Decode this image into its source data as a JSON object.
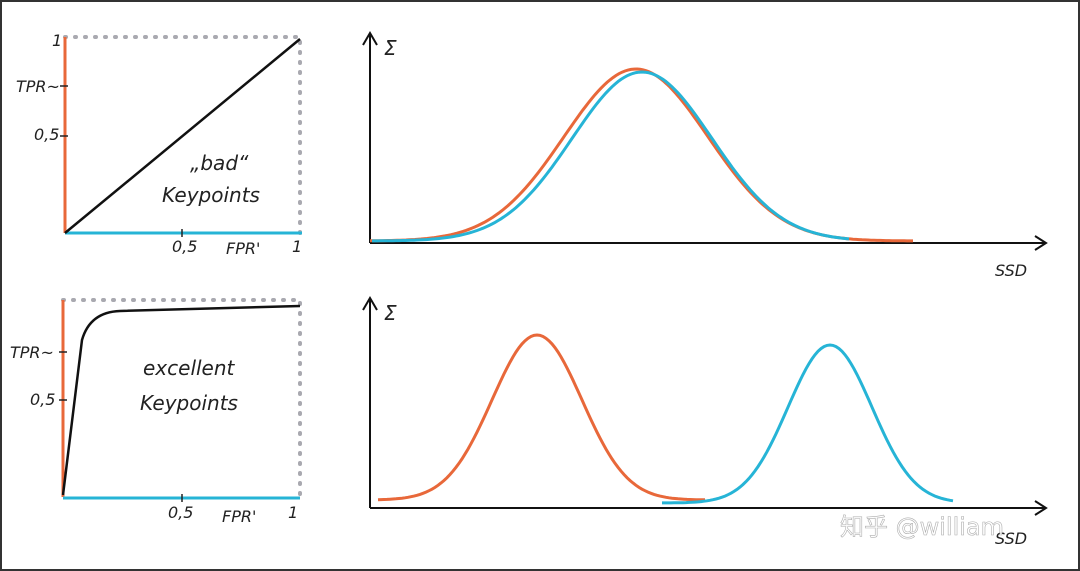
{
  "panels": [
    {
      "roc": {
        "y_top": "1",
        "y_mid": "TPR~",
        "y_half": "0,5",
        "caption": [
          "„bad“",
          "Keypoints"
        ],
        "x_half": "0,5",
        "x_label": "FPR'",
        "x_end": "1"
      },
      "distribution": {
        "y_label": "Σ",
        "x_label": "SSD"
      }
    },
    {
      "roc": {
        "y_mid": "TPR~",
        "y_half": "0,5",
        "caption": [
          "excellent",
          "Keypoints"
        ],
        "x_half": "0,5",
        "x_label": "FPR'",
        "x_end": "1"
      },
      "distribution": {
        "y_label": "Σ",
        "x_label": "SSD"
      }
    }
  ],
  "watermark": "知乎 @william"
}
